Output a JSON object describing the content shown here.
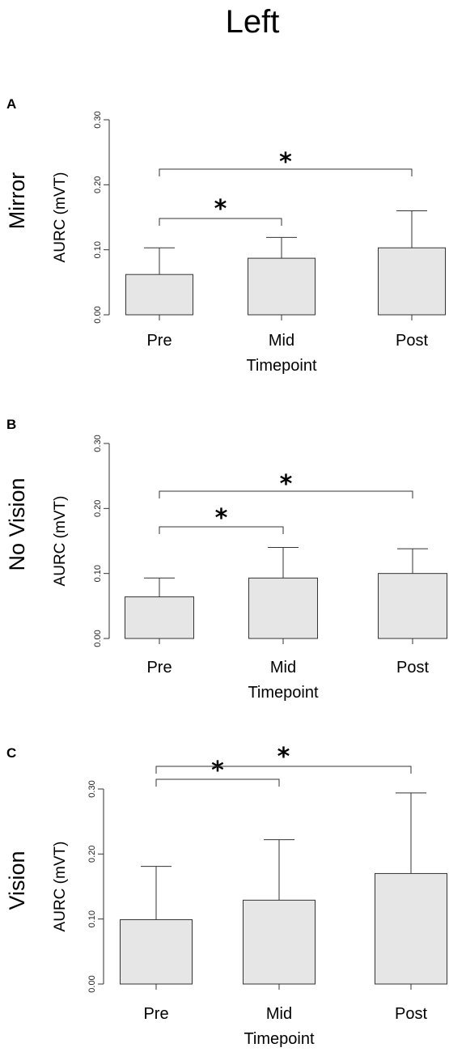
{
  "title": "Left",
  "colors": {
    "bar_fill": "#e6e6e6",
    "stroke": "#333333"
  },
  "chart_data": [
    {
      "type": "bar",
      "panel": "A",
      "row_label": "Mirror",
      "categories": [
        "Pre",
        "Mid",
        "Post"
      ],
      "values": [
        0.062,
        0.087,
        0.103
      ],
      "error_upper": [
        0.103,
        0.119,
        0.16
      ],
      "ylim": [
        0,
        0.3
      ],
      "yticks": [
        "0.00",
        "0.10",
        "0.20",
        "0.30"
      ],
      "ylabel": "AURC (mVT)",
      "xlabel": "Timepoint",
      "significance": [
        {
          "from": "Pre",
          "to": "Mid",
          "label": "*"
        },
        {
          "from": "Pre",
          "to": "Post",
          "label": "*"
        }
      ]
    },
    {
      "type": "bar",
      "panel": "B",
      "row_label": "No Vision",
      "categories": [
        "Pre",
        "Mid",
        "Post"
      ],
      "values": [
        0.064,
        0.093,
        0.1
      ],
      "error_upper": [
        0.093,
        0.14,
        0.138
      ],
      "ylim": [
        0,
        0.3
      ],
      "yticks": [
        "0.00",
        "0.10",
        "0.20",
        "0.30"
      ],
      "ylabel": "AURC (mVT)",
      "xlabel": "Timepoint",
      "significance": [
        {
          "from": "Pre",
          "to": "Mid",
          "label": "*"
        },
        {
          "from": "Pre",
          "to": "Post",
          "label": "*"
        }
      ]
    },
    {
      "type": "bar",
      "panel": "C",
      "row_label": "Vision",
      "categories": [
        "Pre",
        "Mid",
        "Post"
      ],
      "values": [
        0.099,
        0.129,
        0.17
      ],
      "error_upper": [
        0.181,
        0.222,
        0.294
      ],
      "ylim": [
        0,
        0.3
      ],
      "yticks": [
        "0.00",
        "0.10",
        "0.20",
        "0.30"
      ],
      "ylabel": "AURC (mVT)",
      "xlabel": "Timepoint",
      "significance": [
        {
          "from": "Pre",
          "to": "Mid",
          "label": "*"
        },
        {
          "from": "Pre",
          "to": "Post",
          "label": "*"
        }
      ]
    }
  ]
}
